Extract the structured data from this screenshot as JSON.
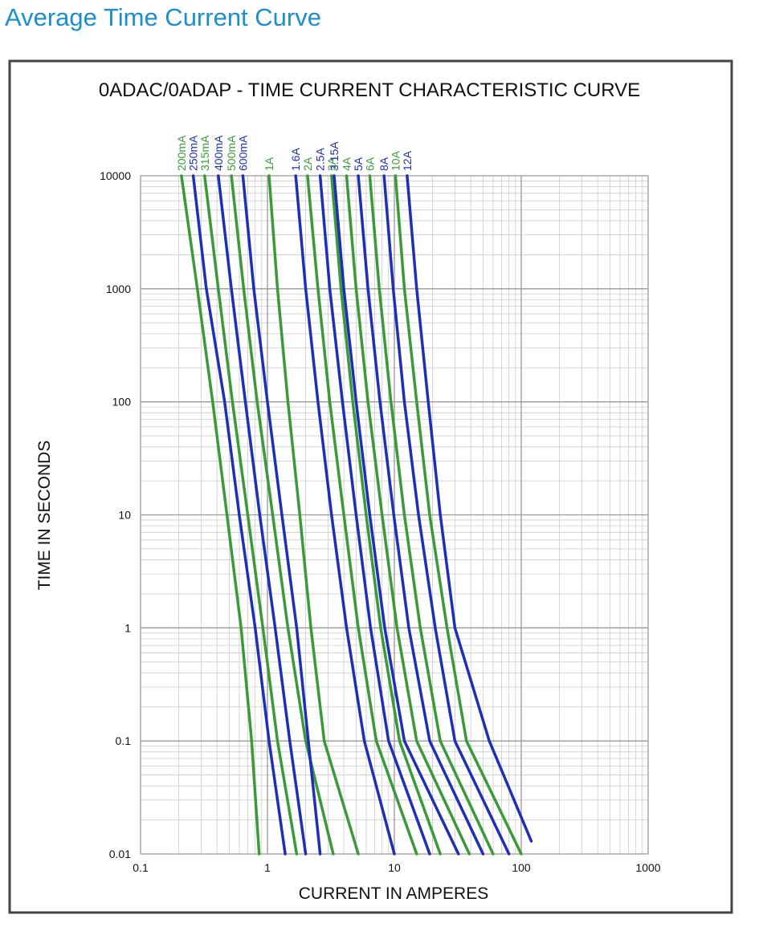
{
  "header": "Average Time Current Curve",
  "chart_data": {
    "type": "line",
    "title": "0ADAC/0ADAP - TIME CURRENT CHARACTERISTIC CURVE",
    "x_label": "CURRENT IN AMPERES",
    "y_label": "TIME IN SECONDS",
    "xscale": "log",
    "yscale": "log",
    "grid": true,
    "xlim": [
      0.1,
      1000
    ],
    "ylim": [
      0.01,
      10000
    ],
    "xticks": [
      0.1,
      1,
      10,
      100,
      1000
    ],
    "yticks": [
      0.01,
      0.1,
      1,
      10,
      100,
      1000,
      10000
    ],
    "series": [
      {
        "name": "200mA",
        "color": "#3a9a3a",
        "x": [
          0.21,
          0.28,
          0.37,
          0.48,
          0.62,
          0.75,
          0.86
        ],
        "values": [
          10000,
          1000,
          100,
          10,
          1,
          0.1,
          0.01
        ]
      },
      {
        "name": "250mA",
        "color": "#1f2fb5",
        "x": [
          0.26,
          0.33,
          0.46,
          0.6,
          0.8,
          1.03,
          1.38
        ],
        "values": [
          10000,
          1000,
          100,
          10,
          1,
          0.1,
          0.01
        ]
      },
      {
        "name": "315mA",
        "color": "#3a9a3a",
        "x": [
          0.32,
          0.41,
          0.53,
          0.7,
          0.92,
          1.2,
          1.7
        ],
        "values": [
          10000,
          1000,
          100,
          10,
          1,
          0.1,
          0.01
        ]
      },
      {
        "name": "400mA",
        "color": "#1f2fb5",
        "x": [
          0.41,
          0.52,
          0.67,
          0.87,
          1.15,
          1.5,
          2.0
        ],
        "values": [
          10000,
          1000,
          100,
          10,
          1,
          0.1,
          0.01
        ]
      },
      {
        "name": "500mA",
        "color": "#3a9a3a",
        "x": [
          0.52,
          0.65,
          0.83,
          1.1,
          1.45,
          2.0,
          3.3
        ],
        "values": [
          10000,
          1000,
          100,
          10,
          1,
          0.1,
          0.01
        ]
      },
      {
        "name": "600mA",
        "color": "#1f2fb5",
        "x": [
          0.64,
          0.78,
          1.0,
          1.3,
          1.7,
          2.1,
          2.6
        ],
        "values": [
          10000,
          1000,
          100,
          10,
          1,
          0.1,
          0.01
        ]
      },
      {
        "name": "1A",
        "color": "#3a9a3a",
        "x": [
          1.03,
          1.2,
          1.45,
          1.8,
          2.2,
          2.8,
          5.2
        ],
        "values": [
          10000,
          1000,
          100,
          10,
          1,
          0.1,
          0.01
        ]
      },
      {
        "name": "1.6A",
        "color": "#1f2fb5",
        "x": [
          1.67,
          2.0,
          2.5,
          3.2,
          4.2,
          5.8,
          10
        ],
        "values": [
          10000,
          1000,
          100,
          10,
          1,
          0.1,
          0.01
        ]
      },
      {
        "name": "2A",
        "color": "#3a9a3a",
        "x": [
          2.07,
          2.5,
          3.1,
          4.0,
          5.2,
          7.2,
          15
        ],
        "values": [
          10000,
          1000,
          100,
          10,
          1,
          0.1,
          0.01
        ]
      },
      {
        "name": "2.5A",
        "color": "#1f2fb5",
        "x": [
          2.6,
          3.1,
          3.9,
          5.0,
          6.5,
          9,
          19
        ],
        "values": [
          10000,
          1000,
          100,
          10,
          1,
          0.1,
          0.01
        ]
      },
      {
        "name": "3A",
        "color": "#3a9a3a",
        "x": [
          3.2,
          3.8,
          4.7,
          6.0,
          7.8,
          11,
          23
        ],
        "values": [
          10000,
          1000,
          100,
          10,
          1,
          0.1,
          0.01
        ]
      },
      {
        "name": "3.15A",
        "color": "#1f2fb5",
        "x": [
          3.35,
          4.0,
          5.0,
          6.4,
          8.4,
          12,
          32
        ],
        "values": [
          10000,
          1000,
          100,
          10,
          1,
          0.1,
          0.01
        ]
      },
      {
        "name": "4A",
        "color": "#3a9a3a",
        "x": [
          4.2,
          5.0,
          6.2,
          8.0,
          10.5,
          15,
          39
        ],
        "values": [
          10000,
          1000,
          100,
          10,
          1,
          0.1,
          0.01
        ]
      },
      {
        "name": "5A",
        "color": "#1f2fb5",
        "x": [
          5.2,
          6.2,
          7.7,
          9.9,
          13,
          19,
          50
        ],
        "values": [
          10000,
          1000,
          100,
          10,
          1,
          0.1,
          0.01
        ]
      },
      {
        "name": "6A",
        "color": "#3a9a3a",
        "x": [
          6.4,
          7.6,
          9.4,
          12,
          16,
          23,
          60
        ],
        "values": [
          10000,
          1000,
          100,
          10,
          1,
          0.1,
          0.01
        ]
      },
      {
        "name": "8A",
        "color": "#1f2fb5",
        "x": [
          8.3,
          9.8,
          12,
          15.5,
          21,
          30,
          80
        ],
        "values": [
          10000,
          1000,
          100,
          10,
          1,
          0.1,
          0.01
        ]
      },
      {
        "name": "10A",
        "color": "#3a9a3a",
        "x": [
          10.2,
          12,
          15,
          19,
          26,
          37,
          100
        ],
        "values": [
          10000,
          1000,
          100,
          10,
          1,
          0.1,
          0.01
        ]
      },
      {
        "name": "12A",
        "color": "#1f2fb5",
        "x": [
          12.6,
          15,
          18.5,
          23,
          30,
          56,
          120
        ],
        "values": [
          10000,
          1000,
          100,
          10,
          1,
          0.1,
          0.013
        ]
      }
    ]
  }
}
